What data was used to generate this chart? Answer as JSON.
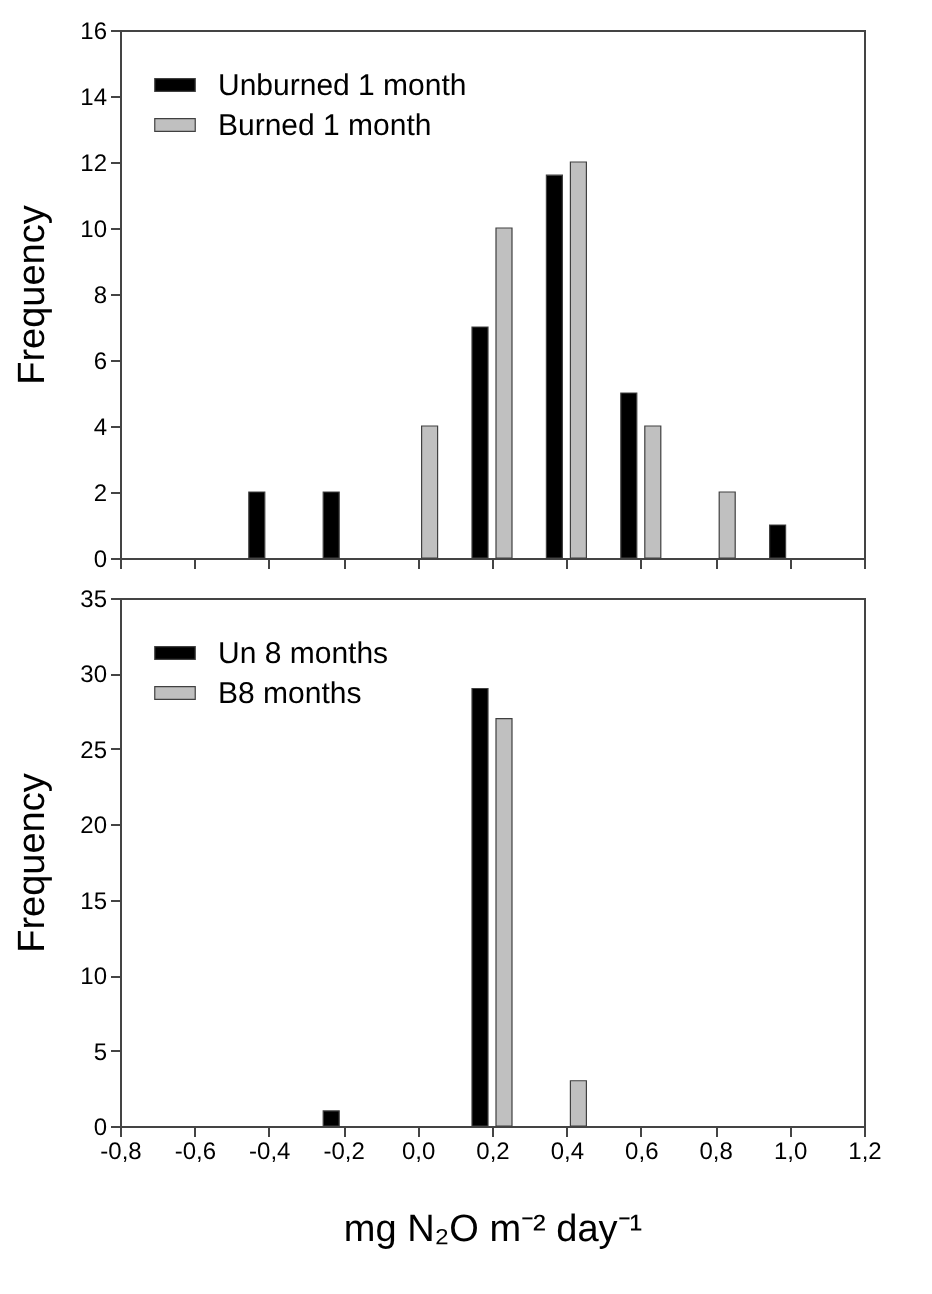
{
  "chart_data": [
    {
      "type": "bar",
      "ylabel": "Frequency",
      "legend": "top left",
      "tick_labels": "y",
      "series": [
        {
          "name": "Unburned 1 month",
          "color": "#000000",
          "x": [
            -0.4,
            -0.2,
            0.2,
            0.4,
            0.6,
            1.0
          ],
          "values": [
            2,
            2,
            7,
            11.6,
            5,
            1
          ]
        },
        {
          "name": "Burned 1 month",
          "color": "#c0c0c0",
          "x": [
            0.0,
            0.2,
            0.4,
            0.6,
            0.8
          ],
          "values": [
            4,
            10,
            12,
            4,
            2
          ]
        }
      ],
      "xlim": [
        -0.8,
        1.2
      ],
      "xticks": [
        {
          "value": -0.8,
          "label": null
        },
        {
          "value": -0.6,
          "label": null
        },
        {
          "value": -0.4,
          "label": null
        },
        {
          "value": -0.2,
          "label": null
        },
        {
          "value": 0.0,
          "label": null
        },
        {
          "value": 0.2,
          "label": null
        },
        {
          "value": 0.4,
          "label": null
        },
        {
          "value": 0.6,
          "label": null
        },
        {
          "value": 0.8,
          "label": null
        },
        {
          "value": 1.0,
          "label": null
        },
        {
          "value": 1.2,
          "label": null
        }
      ],
      "ylim": [
        0,
        16
      ],
      "yticks": [
        0,
        2,
        4,
        6,
        8,
        10,
        12,
        14,
        16
      ]
    },
    {
      "type": "bar",
      "ylabel": "Frequency",
      "xlabel": "mg N₂O m⁻² day⁻¹",
      "legend": "top left",
      "series": [
        {
          "name": "Un 8 months",
          "color": "#000000",
          "x": [
            -0.2,
            0.2
          ],
          "values": [
            1,
            29
          ]
        },
        {
          "name": "B8 months",
          "color": "#c0c0c0",
          "x": [
            0.2,
            0.4
          ],
          "values": [
            27,
            3
          ]
        }
      ],
      "xlim": [
        -0.8,
        1.2
      ],
      "xticks": [
        {
          "value": -0.8,
          "label": "-0,8"
        },
        {
          "value": -0.6,
          "label": "-0,6"
        },
        {
          "value": -0.4,
          "label": "-0,4"
        },
        {
          "value": -0.2,
          "label": "-0,2"
        },
        {
          "value": 0.0,
          "label": "0,0"
        },
        {
          "value": 0.2,
          "label": "0,2"
        },
        {
          "value": 0.4,
          "label": "0,4"
        },
        {
          "value": 0.6,
          "label": "0,6"
        },
        {
          "value": 0.8,
          "label": "0,8"
        },
        {
          "value": 1.0,
          "label": "1,0"
        },
        {
          "value": 1.2,
          "label": "1,2"
        }
      ],
      "ylim": [
        0,
        35
      ],
      "yticks": [
        0,
        5,
        10,
        15,
        20,
        25,
        30,
        35
      ]
    }
  ]
}
